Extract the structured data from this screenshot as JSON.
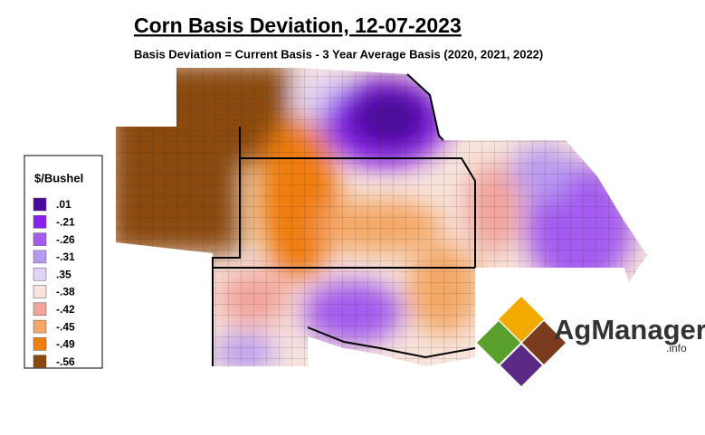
{
  "header": {
    "title": "Corn Basis Deviation, 12-07-2023",
    "subtitle": "Basis Deviation = Current Basis - 3 Year Average Basis (2020, 2021, 2022)"
  },
  "legend": {
    "title": "$/Bushel",
    "items": [
      {
        "label": ".01",
        "color": "#4b0a9c"
      },
      {
        "label": "-.21",
        "color": "#8a1ff2"
      },
      {
        "label": "-.26",
        "color": "#a45cf0"
      },
      {
        "label": "-.31",
        "color": "#b99af2"
      },
      {
        "label": ".35",
        "color": "#e2d3f8"
      },
      {
        "label": "-.38",
        "color": "#f8e4dc"
      },
      {
        "label": "-.42",
        "color": "#f2a39a"
      },
      {
        "label": "-.45",
        "color": "#f5a866"
      },
      {
        "label": "-.49",
        "color": "#f07d10"
      },
      {
        "label": "-.56",
        "color": "#8b4a0d"
      }
    ]
  },
  "logo": {
    "name": "AgManager",
    "suffix": ".info"
  }
}
